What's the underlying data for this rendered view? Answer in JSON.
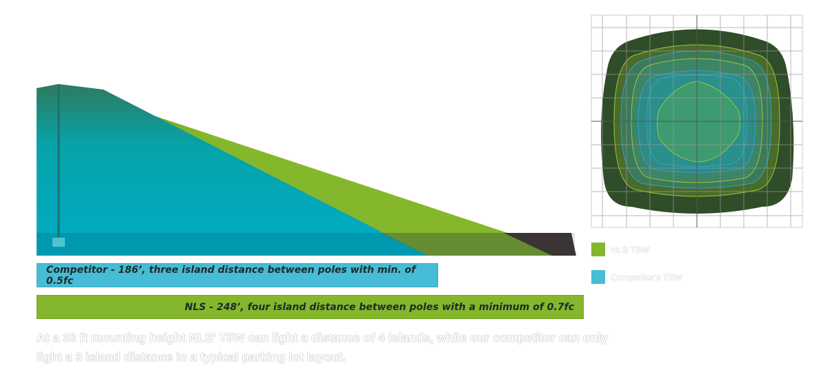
{
  "diagram": {
    "bars": {
      "competitor": "Competitor - 186’, three island distance between poles with min. of 0.5fc",
      "nls": "NLS - 248’, four island distance between poles with a minimum of 0.7fc"
    },
    "legend": [
      {
        "label": "NLS T5W",
        "color": "#84b72b"
      },
      {
        "label": "Competitor's T5W",
        "color": "#47bcd6"
      }
    ],
    "caption": "At a 33 ft mounting height NLS' T5W can light a distance of 4 islands, while our competitor can only light a 3 island distance in a typical parking lot layout.",
    "colors": {
      "nls": "#84b72b",
      "competitor": "#00adc6",
      "ground_dark": "#3a3434"
    }
  }
}
